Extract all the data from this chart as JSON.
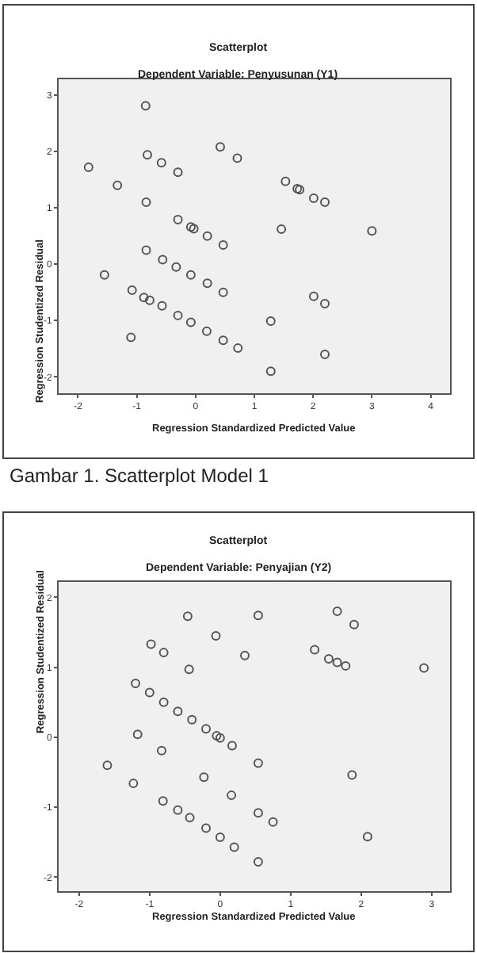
{
  "chart_data": [
    {
      "type": "scatter",
      "title": "Scatterplot",
      "subtitle": "Dependent Variable: Penyusunan (Y1)",
      "xlabel": "Regression Standardized Predicted Value",
      "ylabel": "Regression Studentized Residual",
      "annotations": [
        "Gambar 1. Scatterplot Model 1"
      ],
      "x": [
        -0.85,
        -0.82,
        0.42,
        0.71,
        -0.58,
        -0.3,
        -1.82,
        -1.33,
        1.53,
        1.73,
        1.77,
        2.01,
        2.2,
        -0.84,
        -0.3,
        -0.08,
        -0.03,
        0.2,
        0.47,
        1.46,
        3.0,
        -0.84,
        -0.56,
        -0.33,
        -0.08,
        0.2,
        0.47,
        -1.55,
        -1.08,
        -0.88,
        -0.78,
        -0.57,
        -0.3,
        -0.08,
        0.19,
        0.47,
        0.72,
        2.01,
        2.2,
        1.28,
        -1.1,
        1.28,
        2.2
      ],
      "series": [
        {
          "color": "#555555",
          "values": [
            2.81,
            1.94,
            2.08,
            1.88,
            1.8,
            1.63,
            1.72,
            1.4,
            1.47,
            1.34,
            1.32,
            1.17,
            1.1,
            1.1,
            0.79,
            0.66,
            0.63,
            0.5,
            0.34,
            0.62,
            0.59,
            0.25,
            0.08,
            -0.05,
            -0.19,
            -0.34,
            -0.5,
            -0.19,
            -0.46,
            -0.59,
            -0.64,
            -0.74,
            -0.91,
            -1.03,
            -1.19,
            -1.35,
            -1.49,
            -0.57,
            -0.7,
            -1.01,
            -1.3,
            -1.9,
            -1.6
          ]
        }
      ],
      "xlim": [
        -2.33,
        4.33
      ],
      "ylim": [
        -2.29,
        3.28
      ],
      "xticks": [
        -2,
        -1,
        0,
        1,
        2,
        3,
        4
      ],
      "yticks": [
        -2,
        -1,
        0,
        1,
        2,
        3
      ],
      "grid": false,
      "marker": "circle"
    },
    {
      "type": "scatter",
      "title": "Scatterplot",
      "subtitle": "Dependent Variable: Penyajian (Y2)",
      "xlabel": "Regression Standardized Predicted Value",
      "ylabel": "Regression Studentized Residual",
      "x": [
        -0.46,
        0.54,
        1.66,
        1.9,
        -0.06,
        -0.98,
        -0.8,
        0.35,
        1.34,
        1.54,
        1.66,
        1.78,
        2.89,
        -0.44,
        -1.2,
        -1.0,
        -0.8,
        -0.6,
        -0.4,
        -0.2,
        -0.05,
        0.0,
        0.17,
        -1.17,
        -0.83,
        0.54,
        1.87,
        -1.6,
        -1.23,
        -0.23,
        0.16,
        -0.81,
        -0.6,
        -0.43,
        -0.2,
        0.0,
        0.2,
        0.54,
        0.75,
        2.09,
        0.54
      ],
      "series": [
        {
          "color": "#555555",
          "values": [
            1.73,
            1.74,
            1.8,
            1.61,
            1.45,
            1.33,
            1.21,
            1.17,
            1.25,
            1.12,
            1.07,
            1.02,
            0.99,
            0.97,
            0.77,
            0.64,
            0.5,
            0.37,
            0.25,
            0.12,
            0.02,
            -0.01,
            -0.12,
            0.04,
            -0.19,
            -0.37,
            -0.54,
            -0.4,
            -0.66,
            -0.57,
            -0.83,
            -0.91,
            -1.04,
            -1.15,
            -1.3,
            -1.43,
            -1.57,
            -1.08,
            -1.21,
            -1.42,
            -1.78
          ]
        }
      ],
      "xlim": [
        -2.29,
        3.26
      ],
      "ylim": [
        -2.2,
        2.22
      ],
      "xticks": [
        -2,
        -1,
        0,
        1,
        2,
        3
      ],
      "yticks": [
        -2,
        -1,
        0,
        1,
        2
      ],
      "grid": false,
      "marker": "circle"
    }
  ]
}
